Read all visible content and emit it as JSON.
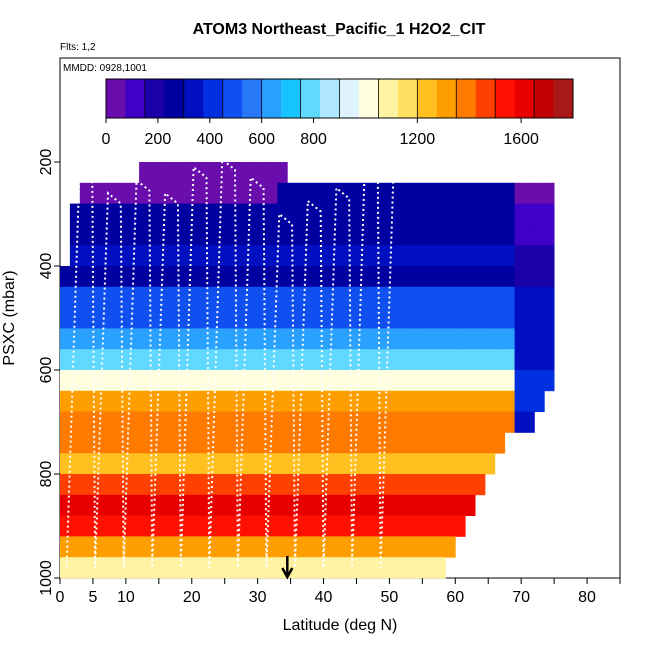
{
  "chart_data": {
    "type": "heatmap",
    "title": "ATOM3 Northeast_Pacific_1 H2O2_CIT",
    "annotations": {
      "flights": "Flts: 1,2",
      "dates": "MMDD: 0928,1001"
    },
    "xlabel": "Latitude (deg N)",
    "ylabel": "PSXC (mbar)",
    "xlim": [
      0,
      85
    ],
    "ylim": [
      1000,
      0
    ],
    "x_ticks": [
      0,
      5,
      10,
      20,
      30,
      40,
      50,
      60,
      70,
      80
    ],
    "y_ticks": [
      200,
      400,
      600,
      800,
      1000
    ],
    "colorbar": {
      "min": 0,
      "max": 1800,
      "ticks": [
        0,
        200,
        400,
        600,
        800,
        1200,
        1600
      ],
      "colors": [
        "#6a0dad",
        "#3f00c8",
        "#1a00a8",
        "#0000a0",
        "#0010c0",
        "#0030e0",
        "#1050f0",
        "#2878f8",
        "#2aa0ff",
        "#18c4ff",
        "#60d8ff",
        "#b0e8ff",
        "#dff3ff",
        "#ffffe0",
        "#fff2a0",
        "#ffe060",
        "#ffc020",
        "#ff9e00",
        "#ff7a00",
        "#ff4000",
        "#ff1000",
        "#e80000",
        "#c00000",
        "#a81818"
      ]
    },
    "pressure_levels": [
      180,
      220,
      260,
      300,
      340,
      380,
      420,
      460,
      500,
      540,
      580,
      620,
      660,
      700,
      740,
      780,
      820,
      860,
      900,
      940,
      980
    ],
    "lat_start": 0,
    "lat_step": 1.5,
    "rows": [
      [
        null,
        null,
        null,
        null,
        null,
        null,
        null,
        null,
        null,
        null,
        null,
        null,
        null,
        null,
        null,
        null,
        null,
        null,
        null,
        null,
        null,
        null,
        null,
        null,
        null,
        null,
        null,
        null,
        null,
        null,
        null,
        null,
        null,
        null,
        null,
        null,
        null,
        null,
        null,
        null,
        null,
        null,
        null,
        null,
        null,
        null,
        null,
        null,
        null,
        null,
        null
      ],
      [
        null,
        null,
        null,
        null,
        null,
        null,
        null,
        null,
        60,
        60,
        60,
        60,
        60,
        60,
        60,
        60,
        60,
        60,
        60,
        60,
        60,
        60,
        60,
        null,
        null,
        null,
        null,
        null,
        null,
        null,
        null,
        null,
        null,
        null,
        null,
        null,
        null,
        null,
        null,
        null,
        null,
        null,
        null,
        null,
        null,
        null,
        null,
        null,
        null,
        null,
        null
      ],
      [
        null,
        null,
        20,
        20,
        20,
        20,
        20,
        20,
        60,
        60,
        60,
        60,
        60,
        60,
        60,
        60,
        60,
        60,
        60,
        60,
        60,
        60,
        250,
        250,
        250,
        250,
        250,
        250,
        250,
        250,
        250,
        250,
        250,
        250,
        250,
        250,
        250,
        250,
        250,
        250,
        250,
        250,
        250,
        250,
        250,
        250,
        60,
        60,
        60,
        60,
        null
      ],
      [
        null,
        250,
        250,
        250,
        250,
        250,
        250,
        250,
        250,
        250,
        250,
        250,
        250,
        250,
        250,
        250,
        250,
        250,
        250,
        250,
        250,
        250,
        250,
        250,
        250,
        250,
        250,
        250,
        250,
        250,
        250,
        250,
        250,
        250,
        250,
        250,
        250,
        250,
        250,
        250,
        250,
        250,
        250,
        250,
        250,
        250,
        120,
        120,
        120,
        120,
        null
      ],
      [
        null,
        250,
        250,
        250,
        250,
        250,
        250,
        250,
        250,
        250,
        250,
        250,
        250,
        250,
        250,
        250,
        250,
        250,
        250,
        250,
        250,
        250,
        250,
        250,
        250,
        250,
        250,
        250,
        250,
        250,
        250,
        250,
        250,
        250,
        250,
        250,
        250,
        250,
        250,
        250,
        250,
        250,
        250,
        250,
        250,
        250,
        120,
        120,
        120,
        120,
        null
      ],
      [
        null,
        320,
        320,
        320,
        320,
        320,
        320,
        320,
        320,
        320,
        320,
        320,
        320,
        320,
        320,
        320,
        320,
        320,
        320,
        320,
        320,
        320,
        320,
        320,
        320,
        320,
        320,
        320,
        320,
        320,
        320,
        320,
        320,
        320,
        320,
        320,
        320,
        320,
        320,
        320,
        320,
        320,
        320,
        320,
        320,
        320,
        200,
        200,
        200,
        200,
        null
      ],
      [
        250,
        250,
        250,
        250,
        250,
        250,
        250,
        250,
        250,
        250,
        250,
        250,
        250,
        250,
        250,
        250,
        250,
        250,
        250,
        250,
        250,
        250,
        250,
        250,
        250,
        250,
        250,
        250,
        250,
        250,
        250,
        250,
        250,
        250,
        250,
        250,
        250,
        250,
        250,
        250,
        250,
        250,
        250,
        250,
        250,
        250,
        200,
        200,
        200,
        200,
        null
      ],
      [
        450,
        450,
        450,
        450,
        450,
        450,
        450,
        450,
        450,
        450,
        450,
        450,
        450,
        450,
        450,
        450,
        450,
        450,
        450,
        450,
        450,
        450,
        450,
        450,
        450,
        450,
        450,
        450,
        450,
        450,
        450,
        450,
        450,
        450,
        450,
        450,
        450,
        450,
        450,
        450,
        450,
        450,
        450,
        450,
        450,
        450,
        350,
        350,
        350,
        350,
        null
      ],
      [
        520,
        520,
        520,
        520,
        520,
        520,
        520,
        520,
        520,
        520,
        520,
        520,
        520,
        520,
        520,
        520,
        520,
        520,
        520,
        520,
        520,
        520,
        520,
        520,
        520,
        520,
        520,
        520,
        520,
        520,
        520,
        520,
        520,
        520,
        520,
        520,
        520,
        520,
        520,
        520,
        520,
        520,
        520,
        520,
        520,
        520,
        350,
        350,
        350,
        350,
        null
      ],
      [
        650,
        650,
        650,
        650,
        650,
        650,
        650,
        650,
        650,
        650,
        650,
        650,
        650,
        650,
        650,
        650,
        650,
        650,
        650,
        650,
        650,
        650,
        650,
        650,
        650,
        650,
        650,
        650,
        650,
        650,
        650,
        650,
        650,
        650,
        650,
        650,
        650,
        650,
        650,
        650,
        650,
        650,
        650,
        650,
        650,
        650,
        350,
        350,
        350,
        350,
        null
      ],
      [
        750,
        750,
        750,
        750,
        750,
        750,
        750,
        750,
        750,
        750,
        750,
        750,
        750,
        750,
        750,
        750,
        750,
        750,
        750,
        750,
        750,
        750,
        750,
        750,
        750,
        750,
        750,
        750,
        750,
        750,
        750,
        750,
        750,
        750,
        750,
        750,
        750,
        750,
        750,
        750,
        750,
        750,
        750,
        750,
        750,
        750,
        350,
        350,
        350,
        350,
        null
      ],
      [
        1000,
        1000,
        1000,
        1000,
        1000,
        1000,
        1000,
        1000,
        1000,
        1000,
        1000,
        1000,
        1000,
        1000,
        1000,
        1000,
        1000,
        1000,
        1000,
        1000,
        1000,
        1000,
        1000,
        1000,
        1000,
        1000,
        1000,
        1000,
        1000,
        1000,
        1000,
        1000,
        1000,
        1000,
        1000,
        1000,
        1000,
        1000,
        1000,
        1000,
        1000,
        1000,
        1000,
        1000,
        1000,
        1000,
        400,
        400,
        400,
        400,
        null
      ],
      [
        1300,
        1300,
        1300,
        1300,
        1300,
        1300,
        1300,
        1300,
        1300,
        1300,
        1300,
        1300,
        1300,
        1300,
        1300,
        1300,
        1300,
        1300,
        1300,
        1300,
        1300,
        1300,
        1300,
        1300,
        1300,
        1300,
        1300,
        1300,
        1300,
        1300,
        1300,
        1300,
        1300,
        1300,
        1300,
        1300,
        1300,
        1300,
        1300,
        1300,
        1300,
        1300,
        1300,
        1300,
        1300,
        1300,
        400,
        400,
        400,
        null,
        null
      ],
      [
        1400,
        1400,
        1400,
        1400,
        1400,
        1400,
        1400,
        1400,
        1400,
        1400,
        1400,
        1400,
        1400,
        1400,
        1400,
        1400,
        1400,
        1400,
        1400,
        1400,
        1400,
        1400,
        1400,
        1400,
        1400,
        1400,
        1400,
        1400,
        1400,
        1400,
        1400,
        1400,
        1400,
        1400,
        1400,
        1400,
        1400,
        1400,
        1400,
        1400,
        1400,
        1400,
        1400,
        1400,
        1400,
        1400,
        350,
        350,
        null,
        null,
        null
      ],
      [
        1350,
        1350,
        1350,
        1350,
        1350,
        1350,
        1350,
        1350,
        1350,
        1350,
        1350,
        1350,
        1350,
        1350,
        1350,
        1350,
        1350,
        1350,
        1350,
        1350,
        1350,
        1350,
        1350,
        1350,
        1350,
        1350,
        1350,
        1350,
        1350,
        1350,
        1350,
        1350,
        1350,
        1350,
        1350,
        1350,
        1350,
        1350,
        1350,
        1350,
        1350,
        1350,
        1350,
        1350,
        1350,
        null,
        null,
        null,
        null,
        null,
        null
      ],
      [
        1250,
        1250,
        1250,
        1250,
        1250,
        1250,
        1250,
        1250,
        1250,
        1250,
        1250,
        1250,
        1250,
        1250,
        1250,
        1250,
        1250,
        1250,
        1250,
        1250,
        1250,
        1250,
        1250,
        1250,
        1250,
        1250,
        1250,
        1250,
        1250,
        1250,
        1250,
        1250,
        1250,
        1250,
        1250,
        1250,
        1250,
        1250,
        1250,
        1250,
        1250,
        1250,
        1250,
        1250,
        null,
        null,
        null,
        null,
        null,
        null,
        null
      ],
      [
        1450,
        1450,
        1450,
        1450,
        1450,
        1450,
        1450,
        1450,
        1450,
        1450,
        1450,
        1450,
        1450,
        1450,
        1450,
        1450,
        1450,
        1450,
        1450,
        1450,
        1450,
        1450,
        1450,
        1450,
        1450,
        1450,
        1450,
        1450,
        1450,
        1450,
        1450,
        1450,
        1450,
        1450,
        1450,
        1450,
        1450,
        1450,
        1450,
        1450,
        1450,
        1450,
        1450,
        null,
        null,
        null,
        null,
        null,
        null,
        null,
        null
      ],
      [
        1600,
        1600,
        1600,
        1600,
        1600,
        1600,
        1600,
        1600,
        1600,
        1600,
        1600,
        1600,
        1600,
        1600,
        1600,
        1600,
        1600,
        1600,
        1600,
        1600,
        1600,
        1600,
        1600,
        1600,
        1600,
        1600,
        1600,
        1600,
        1600,
        1600,
        1600,
        1600,
        1600,
        1600,
        1600,
        1600,
        1600,
        1600,
        1600,
        1600,
        1600,
        1600,
        null,
        null,
        null,
        null,
        null,
        null,
        null,
        null,
        null
      ],
      [
        1550,
        1550,
        1550,
        1550,
        1550,
        1550,
        1550,
        1550,
        1550,
        1550,
        1550,
        1550,
        1550,
        1550,
        1550,
        1550,
        1550,
        1550,
        1550,
        1550,
        1550,
        1550,
        1550,
        1550,
        1550,
        1550,
        1550,
        1550,
        1550,
        1550,
        1550,
        1550,
        1550,
        1550,
        1550,
        1550,
        1550,
        1550,
        1550,
        1550,
        1550,
        null,
        null,
        null,
        null,
        null,
        null,
        null,
        null,
        null,
        null
      ],
      [
        1300,
        1300,
        1300,
        1300,
        1300,
        1300,
        1300,
        1300,
        1300,
        1300,
        1300,
        1300,
        1300,
        1300,
        1300,
        1300,
        1300,
        1300,
        1300,
        1300,
        1300,
        1300,
        1300,
        1300,
        1300,
        1300,
        1300,
        1300,
        1300,
        1300,
        1300,
        1300,
        1300,
        1300,
        1300,
        1300,
        1300,
        1300,
        1300,
        1300,
        null,
        null,
        null,
        null,
        null,
        null,
        null,
        null,
        null,
        null,
        null
      ],
      [
        1100,
        1100,
        1100,
        1100,
        1100,
        1100,
        1100,
        1100,
        1100,
        1100,
        1100,
        1100,
        1100,
        1100,
        1100,
        1100,
        1100,
        1100,
        1100,
        1100,
        1100,
        1100,
        1100,
        1100,
        1100,
        1100,
        1100,
        1100,
        1100,
        1100,
        1100,
        1100,
        1100,
        1100,
        1100,
        1100,
        1100,
        1100,
        1100,
        null,
        null,
        null,
        null,
        null,
        null,
        null,
        null,
        null,
        null,
        null,
        null
      ]
    ],
    "flight_track_min_pressure": [
      220,
      260,
      235,
      260,
      210,
      195,
      230,
      300,
      275,
      250,
      200,
      220
    ],
    "marker_latitude": 34.5
  }
}
